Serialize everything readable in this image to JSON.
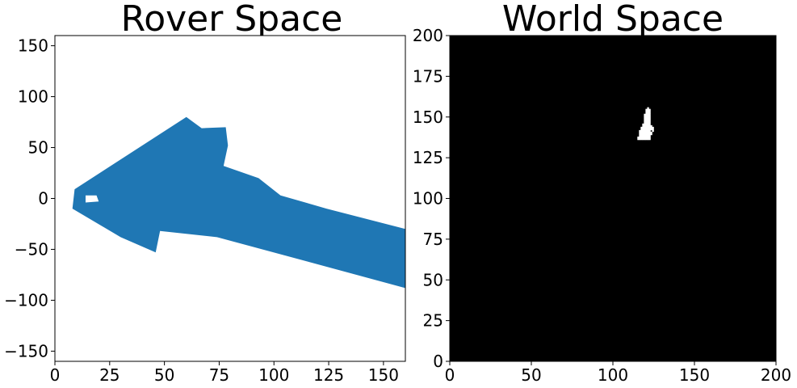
{
  "chart_data": [
    {
      "type": "scatter",
      "title": "Rover Space",
      "xlim": [
        0,
        160
      ],
      "ylim": [
        -160,
        160
      ],
      "xticks": [
        0,
        25,
        50,
        75,
        100,
        125,
        150
      ],
      "yticks": [
        -150,
        -100,
        -50,
        0,
        50,
        100,
        150
      ],
      "grid": false,
      "marker_color": "#1f77b4",
      "series": [
        {
          "region_outline": [
            [
              9,
              9
            ],
            [
              60,
              80
            ],
            [
              67,
              69
            ],
            [
              78,
              70
            ],
            [
              79,
              52
            ],
            [
              77,
              32
            ],
            [
              93,
              20
            ],
            [
              103,
              3
            ],
            [
              124,
              -10
            ],
            [
              160,
              -30
            ],
            [
              160,
              -88
            ],
            [
              74,
              -38
            ],
            [
              48,
              -32
            ],
            [
              46,
              -53
            ],
            [
              30,
              -38
            ],
            [
              8,
              -10
            ]
          ],
          "gap_outline": [
            [
              14,
              3
            ],
            [
              19,
              3
            ],
            [
              20,
              -3
            ],
            [
              14,
              -4
            ]
          ],
          "inner_dots": [
            [
              10,
              0
            ],
            [
              11,
              0
            ],
            [
              12,
              0
            ],
            [
              13,
              0
            ],
            [
              10,
              -1
            ],
            [
              11,
              -1
            ],
            [
              12,
              -1
            ],
            [
              13,
              -1
            ]
          ]
        }
      ]
    },
    {
      "type": "heatmap",
      "title": "World Space",
      "xlim": [
        0,
        200
      ],
      "ylim": [
        0,
        200
      ],
      "xticks": [
        0,
        50,
        100,
        150,
        200
      ],
      "yticks": [
        0,
        25,
        50,
        75,
        100,
        125,
        150,
        175,
        200
      ],
      "grid": false,
      "background_color": "#000000",
      "pixel_color": "#ffffff",
      "white_pixels": [
        [
          121,
          155
        ],
        [
          120,
          154
        ],
        [
          121,
          154
        ],
        [
          122,
          154
        ],
        [
          120,
          153
        ],
        [
          121,
          153
        ],
        [
          122,
          153
        ],
        [
          120,
          152
        ],
        [
          121,
          152
        ],
        [
          122,
          152
        ],
        [
          119,
          151
        ],
        [
          120,
          151
        ],
        [
          121,
          151
        ],
        [
          122,
          151
        ],
        [
          119,
          150
        ],
        [
          120,
          150
        ],
        [
          121,
          150
        ],
        [
          122,
          150
        ],
        [
          119,
          149
        ],
        [
          120,
          149
        ],
        [
          121,
          149
        ],
        [
          122,
          149
        ],
        [
          119,
          148
        ],
        [
          120,
          148
        ],
        [
          121,
          148
        ],
        [
          122,
          148
        ],
        [
          119,
          147
        ],
        [
          120,
          147
        ],
        [
          121,
          147
        ],
        [
          122,
          147
        ],
        [
          119,
          146
        ],
        [
          120,
          146
        ],
        [
          121,
          146
        ],
        [
          122,
          146
        ],
        [
          118,
          145
        ],
        [
          119,
          145
        ],
        [
          120,
          145
        ],
        [
          121,
          145
        ],
        [
          122,
          145
        ],
        [
          118,
          144
        ],
        [
          119,
          144
        ],
        [
          120,
          144
        ],
        [
          121,
          144
        ],
        [
          122,
          144
        ],
        [
          123,
          144
        ],
        [
          117,
          143
        ],
        [
          118,
          143
        ],
        [
          119,
          143
        ],
        [
          120,
          143
        ],
        [
          121,
          143
        ],
        [
          122,
          143
        ],
        [
          123,
          143
        ],
        [
          124,
          143
        ],
        [
          117,
          142
        ],
        [
          118,
          142
        ],
        [
          119,
          142
        ],
        [
          120,
          142
        ],
        [
          121,
          142
        ],
        [
          122,
          142
        ],
        [
          123,
          142
        ],
        [
          124,
          142
        ],
        [
          116,
          141
        ],
        [
          117,
          141
        ],
        [
          118,
          141
        ],
        [
          119,
          141
        ],
        [
          120,
          141
        ],
        [
          121,
          141
        ],
        [
          122,
          141
        ],
        [
          124,
          141
        ],
        [
          116,
          140
        ],
        [
          117,
          140
        ],
        [
          118,
          140
        ],
        [
          119,
          140
        ],
        [
          120,
          140
        ],
        [
          121,
          140
        ],
        [
          122,
          140
        ],
        [
          123,
          140
        ],
        [
          116,
          139
        ],
        [
          117,
          139
        ],
        [
          118,
          139
        ],
        [
          119,
          139
        ],
        [
          120,
          139
        ],
        [
          121,
          139
        ],
        [
          122,
          139
        ],
        [
          123,
          139
        ],
        [
          116,
          138
        ],
        [
          117,
          138
        ],
        [
          118,
          138
        ],
        [
          119,
          138
        ],
        [
          120,
          138
        ],
        [
          121,
          138
        ],
        [
          122,
          138
        ],
        [
          115,
          137
        ],
        [
          116,
          137
        ],
        [
          117,
          137
        ],
        [
          118,
          137
        ],
        [
          119,
          137
        ],
        [
          120,
          137
        ],
        [
          121,
          137
        ],
        [
          122,
          137
        ],
        [
          115,
          136
        ],
        [
          116,
          136
        ],
        [
          117,
          136
        ],
        [
          118,
          136
        ],
        [
          119,
          136
        ],
        [
          120,
          136
        ],
        [
          121,
          136
        ],
        [
          122,
          136
        ]
      ]
    }
  ]
}
